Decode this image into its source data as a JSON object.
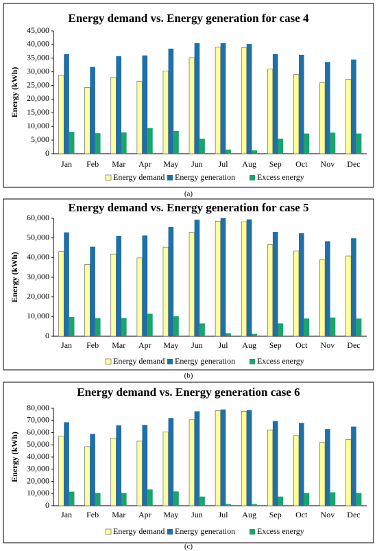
{
  "chart_data": [
    {
      "type": "bar",
      "title": "Energy demand vs. Energy generation for case 4",
      "y_label": "Energy (kWh)",
      "caption": "(a)",
      "categories": [
        "Jan",
        "Feb",
        "Mar",
        "Apr",
        "May",
        "Jun",
        "Jul",
        "Aug",
        "Sep",
        "Oct",
        "Nov",
        "Dec"
      ],
      "series": [
        {
          "name": "Energy demand",
          "color": "#ffff99",
          "values": [
            28800,
            24300,
            28000,
            26500,
            30300,
            35200,
            39000,
            38800,
            31000,
            29000,
            26000,
            27300
          ]
        },
        {
          "name": "Energy generation",
          "color": "#1f6fa8",
          "values": [
            36500,
            31800,
            35700,
            36000,
            38500,
            40500,
            40500,
            40200,
            36500,
            36200,
            33600,
            34500
          ]
        },
        {
          "name": "Excess energy",
          "color": "#1aa56a",
          "values": [
            8000,
            7500,
            7800,
            9400,
            8300,
            5500,
            1500,
            1200,
            5500,
            7400,
            7700,
            7400
          ]
        }
      ],
      "ylim": [
        0,
        45000
      ],
      "yticks": [
        0,
        {
          "value": 5000,
          "label": "5,000"
        },
        {
          "value": 10000,
          "label": "10,000"
        },
        {
          "value": 15000,
          "label": "15,000"
        },
        {
          "value": 20000,
          "label": "20,000"
        },
        {
          "value": 25000,
          "label": "25,000"
        },
        {
          "value": 30000,
          "label": "30,000"
        },
        {
          "value": 35000,
          "label": "35,000"
        },
        {
          "value": 40000,
          "label": "40,000"
        },
        {
          "value": 45000,
          "label": "45,000"
        }
      ],
      "grid": false,
      "legend": "bottom"
    },
    {
      "type": "bar",
      "title": "Energy demand vs. Energy generation for case 5",
      "y_label": "Energy (kWh)",
      "caption": "(b)",
      "categories": [
        "Jan",
        "Feb",
        "Mar",
        "Apr",
        "May",
        "Jun",
        "Jul",
        "Aug",
        "Sep",
        "Oct",
        "Nov",
        "Dec"
      ],
      "series": [
        {
          "name": "Energy demand",
          "color": "#ffff99",
          "values": [
            43000,
            36500,
            41800,
            39800,
            45300,
            52800,
            58500,
            58200,
            46500,
            43300,
            38800,
            40800
          ]
        },
        {
          "name": "Energy generation",
          "color": "#1f6fa8",
          "values": [
            52800,
            45500,
            51000,
            51200,
            55500,
            59200,
            60000,
            59400,
            53000,
            52400,
            48300,
            49800
          ]
        },
        {
          "name": "Excess energy",
          "color": "#1aa56a",
          "values": [
            9800,
            9200,
            9300,
            11500,
            10200,
            6500,
            1500,
            1200,
            6500,
            9000,
            9500,
            9000
          ]
        }
      ],
      "ylim": [
        0,
        60000
      ],
      "yticks": [
        0,
        {
          "value": 10000,
          "label": "10,000"
        },
        {
          "value": 20000,
          "label": "20,000"
        },
        {
          "value": 30000,
          "label": "30,000"
        },
        {
          "value": 40000,
          "label": "40,000"
        },
        {
          "value": 50000,
          "label": "50,000"
        },
        {
          "value": 60000,
          "label": "60,000"
        }
      ],
      "grid": false,
      "legend": "bottom"
    },
    {
      "type": "bar",
      "title": "Energy demand vs. Energy generation case 6",
      "y_label": "Energy (kWh)",
      "caption": "(c)",
      "categories": [
        "Jan",
        "Feb",
        "Mar",
        "Apr",
        "May",
        "Jun",
        "Jul",
        "Aug",
        "Sep",
        "Oct",
        "Nov",
        "Dec"
      ],
      "series": [
        {
          "name": "Energy demand",
          "color": "#ffff99",
          "values": [
            57000,
            48500,
            55500,
            53000,
            60500,
            70500,
            78000,
            77500,
            62000,
            57500,
            52000,
            54500
          ]
        },
        {
          "name": "Energy generation",
          "color": "#1f6fa8",
          "values": [
            68500,
            59000,
            66000,
            66300,
            72000,
            77500,
            79000,
            78500,
            69500,
            68000,
            63000,
            65000
          ]
        },
        {
          "name": "Excess energy",
          "color": "#1aa56a",
          "values": [
            11500,
            10500,
            10500,
            13300,
            11700,
            7500,
            1300,
            1200,
            7500,
            10500,
            11000,
            10500
          ]
        }
      ],
      "ylim": [
        0,
        80000
      ],
      "yticks": [
        0,
        {
          "value": 10000,
          "label": "10,000"
        },
        {
          "value": 20000,
          "label": "20,000"
        },
        {
          "value": 30000,
          "label": "30,000"
        },
        {
          "value": 40000,
          "label": "40,000"
        },
        {
          "value": 50000,
          "label": "50,000"
        },
        {
          "value": 60000,
          "label": "60,000"
        },
        {
          "value": 70000,
          "label": "70,000"
        },
        {
          "value": 80000,
          "label": "80,000"
        }
      ],
      "grid": false,
      "legend": "bottom"
    }
  ]
}
